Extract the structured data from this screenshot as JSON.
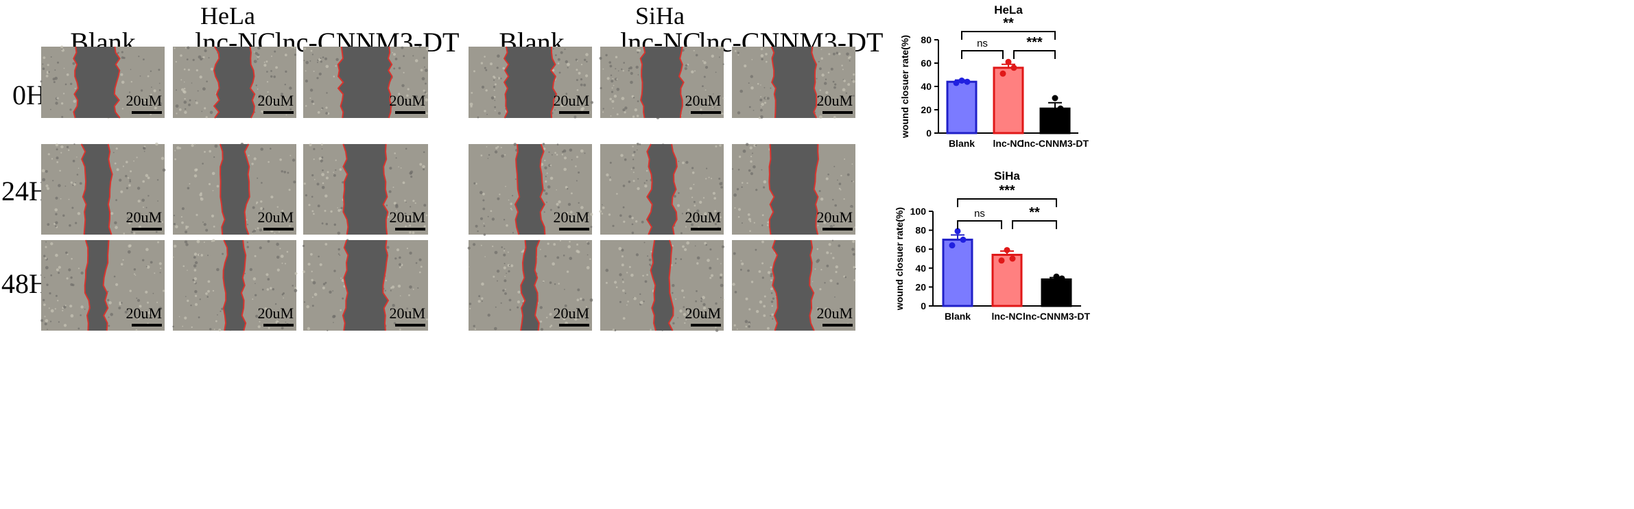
{
  "micro": {
    "cell_lines": [
      "HeLa",
      "SiHa"
    ],
    "conditions": [
      "Blank",
      "lnc-NC",
      "lnc-CNNM3-DT"
    ],
    "timepoints": [
      "0H",
      "24H",
      "48H"
    ],
    "scale_label": "20uM",
    "colors": {
      "background": "#9d9a90",
      "wound": "#5a5a5a",
      "edge": "#d8342e"
    },
    "gap_fraction": [
      [
        [
          0.33,
          0.29,
          0.4
        ],
        [
          0.21,
          0.2,
          0.32
        ],
        [
          0.15,
          0.14,
          0.32
        ]
      ],
      [
        [
          0.38,
          0.32,
          0.33
        ],
        [
          0.2,
          0.2,
          0.36
        ],
        [
          0.11,
          0.14,
          0.3
        ]
      ]
    ]
  },
  "chart_data": [
    {
      "type": "bar",
      "title": "HeLa",
      "ylabel": "wound closuer rate(%)",
      "categories": [
        "Blank",
        "lnc-NC",
        "lnc-CNNM3-DT"
      ],
      "values": [
        44,
        56,
        21
      ],
      "errors": [
        1.5,
        3,
        5
      ],
      "points": [
        [
          43,
          44,
          45
        ],
        [
          51,
          56,
          61
        ],
        [
          11,
          21,
          30
        ]
      ],
      "colors": {
        "fill": [
          "#7b7bff",
          "#ff8080",
          "#000000"
        ],
        "stroke": [
          "#2020c8",
          "#e01818",
          "#000000"
        ],
        "dot": [
          "#2020e0",
          "#e01818",
          "#000000"
        ]
      },
      "ylim": [
        0,
        80
      ],
      "yticks": [
        0,
        20,
        40,
        60,
        80
      ],
      "comparisons": [
        {
          "from": 0,
          "to": 1,
          "label": "ns",
          "level": 1
        },
        {
          "from": 1,
          "to": 2,
          "label": "***",
          "level": 1
        },
        {
          "from": 0,
          "to": 2,
          "label": "**",
          "level": 2
        }
      ]
    },
    {
      "type": "bar",
      "title": "SiHa",
      "ylabel": "wound closuer rate(%)",
      "categories": [
        "Blank",
        "lnc-NC",
        "lnc-CNNM3-DT"
      ],
      "values": [
        70,
        54,
        28
      ],
      "errors": [
        5,
        4,
        2
      ],
      "points": [
        [
          64,
          70,
          79
        ],
        [
          48,
          50,
          59
        ],
        [
          26,
          29,
          31
        ]
      ],
      "colors": {
        "fill": [
          "#7b7bff",
          "#ff8080",
          "#000000"
        ],
        "stroke": [
          "#2020c8",
          "#e01818",
          "#000000"
        ],
        "dot": [
          "#2020e0",
          "#e01818",
          "#000000"
        ]
      },
      "ylim": [
        0,
        100
      ],
      "yticks": [
        0,
        20,
        40,
        60,
        80,
        100
      ],
      "comparisons": [
        {
          "from": 0,
          "to": 1,
          "label": "ns",
          "level": 1
        },
        {
          "from": 1,
          "to": 2,
          "label": "**",
          "level": 1
        },
        {
          "from": 0,
          "to": 2,
          "label": "***",
          "level": 2
        }
      ]
    }
  ]
}
